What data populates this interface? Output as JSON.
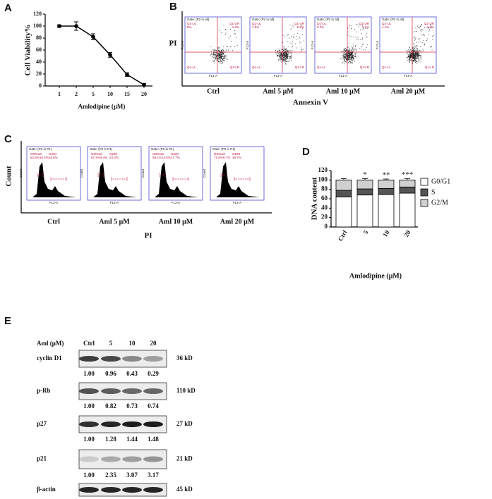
{
  "panel_labels": [
    "A",
    "B",
    "C",
    "D",
    "E"
  ],
  "chart_data": [
    {
      "type": "line",
      "y_label": "Cell Viability%",
      "x_label": "Amlodipine (μM)",
      "categories": [
        "1",
        "2",
        "5",
        "10",
        "15",
        "20"
      ],
      "values": [
        100,
        100,
        82,
        52,
        19,
        2
      ],
      "errors": [
        2,
        7,
        5,
        4,
        3,
        2
      ],
      "color": "#000000",
      "ylim": [
        0,
        120
      ],
      "yticks": [
        0,
        20,
        40,
        60,
        80,
        100,
        120
      ]
    },
    {
      "type": "bar",
      "stacked": true,
      "y_label": "DNA content",
      "x_label": "Amlodipine (μM)",
      "categories": [
        "Ctrl",
        "5",
        "10",
        "20"
      ],
      "series": [
        {
          "name": "G0/G1",
          "color": "#ffffff",
          "values": [
            64,
            68,
            69,
            72
          ],
          "errors": [
            2,
            2,
            2,
            2
          ]
        },
        {
          "name": "S",
          "color": "#555555",
          "values": [
            14,
            13,
            13,
            13
          ],
          "errors": [
            3,
            3,
            2,
            3
          ]
        },
        {
          "name": "G2/M",
          "color": "#d0d0d0",
          "values": [
            22,
            19,
            18,
            15
          ],
          "errors": [
            3,
            3,
            2,
            3
          ]
        }
      ],
      "annotations": [
        null,
        "*",
        "**",
        "***"
      ],
      "ylim": [
        0,
        120
      ],
      "yticks": [
        0,
        20,
        40,
        60,
        80,
        100,
        120
      ],
      "legend": "right"
    }
  ],
  "flow_cytometry": {
    "y_label": "PI",
    "x_label": "Annexin V",
    "gate": "Gate: (P2 in all)",
    "quadrants": [
      "Q1-UL",
      "Q1-UR",
      "Q1-LL",
      "Q1-LR"
    ],
    "x_axis": "FL1-A",
    "y_axis": "FL2-A",
    "plots": [
      {
        "label": "Ctrl",
        "ul": "0%",
        "ur": "1.2%"
      },
      {
        "label": "Aml 5 μM",
        "ul": "1.6%",
        "ur": "0.8%"
      },
      {
        "label": "Aml 10 μM",
        "ul": "0.2%",
        "ur": "1.1%"
      },
      {
        "label": "Aml 20 μM",
        "ul": "1.1%",
        "ur": "1.3%"
      }
    ]
  },
  "cell_cycle": {
    "y_label": "Count",
    "x_label": "PI",
    "gate": "Gate: (P2 in P1)",
    "phases": [
      "G0/G1",
      "S",
      "G2/M"
    ],
    "x_axis": "FL2-A",
    "y_axis": "Count",
    "plots": [
      {
        "label": "Ctrl",
        "pct": [
          "62.6%",
          "10.4%",
          "26.8%"
        ]
      },
      {
        "label": "Aml 5 μM",
        "pct": [
          "67.4%",
          "9.4%",
          "23.3%"
        ]
      },
      {
        "label": "Aml 10 μM",
        "pct": [
          "69.1%",
          "13.5%",
          "17.7%"
        ]
      },
      {
        "label": "Aml 20 μM",
        "pct": [
          "71.6%",
          "8.7%",
          "18.7%"
        ]
      }
    ]
  },
  "western_blot": {
    "header": "Aml (μM)",
    "lanes": [
      "Ctrl",
      "5",
      "10",
      "20"
    ],
    "rows": [
      {
        "name": "cyclin D1",
        "size": "36 kD",
        "values": [
          "1.00",
          "0.96",
          "0.43",
          "0.29"
        ]
      },
      {
        "name": "p-Rb",
        "size": "110 kD",
        "values": [
          "1.00",
          "0.82",
          "0.73",
          "0.74"
        ]
      },
      {
        "name": "p27",
        "size": "27 kD",
        "values": [
          "1.00",
          "1.28",
          "1.44",
          "1.48"
        ]
      },
      {
        "name": "p21",
        "size": "21 kD",
        "values": [
          "1.00",
          "2.35",
          "3.07",
          "3.17"
        ]
      },
      {
        "name": "β-actin",
        "size": "45 kD",
        "values": []
      }
    ]
  }
}
